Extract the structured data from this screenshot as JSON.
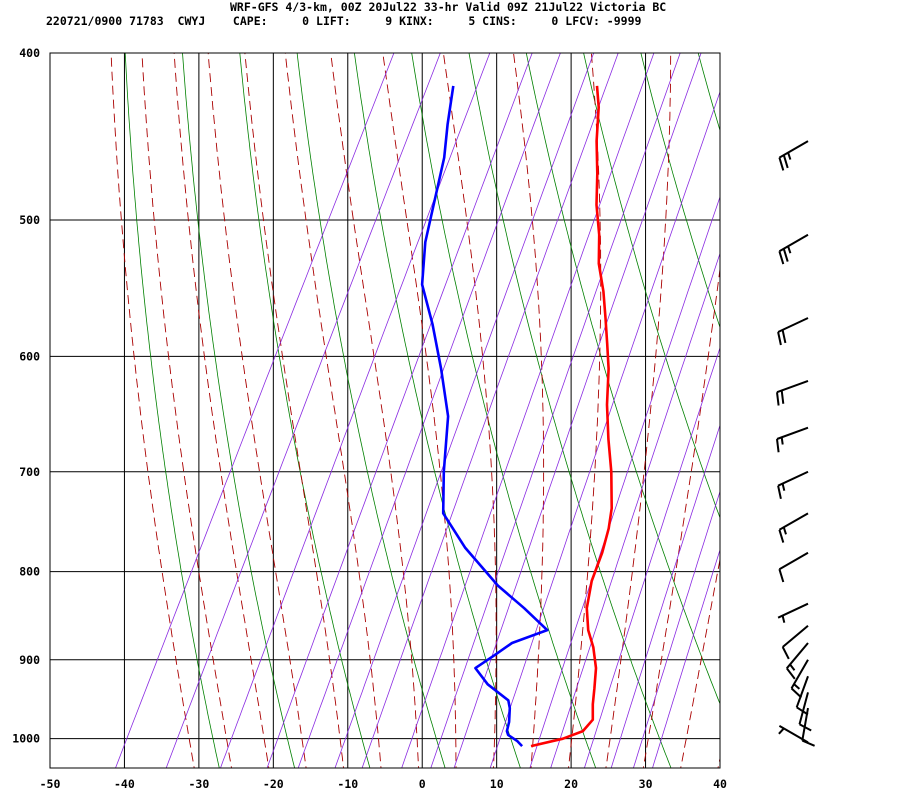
{
  "header": {
    "line1": "WRF-GFS 4/3-km, 00Z 20Jul22 33-hr Valid 09Z 21Jul22 Victoria BC",
    "line2": "220721/0900 71783  CWYJ    CAPE:     0 LIFT:     9 KINX:     5 CINS:     0 LFCV: -9999"
  },
  "chart_data": {
    "type": "line",
    "title": "WRF-GFS 4/3-km, 00Z 20Jul22 33-hr Valid 09Z 21Jul22 Victoria BC",
    "xlabel": "",
    "ylabel": "",
    "x_scale": "skew-T temperature (C)",
    "y_scale": "log pressure (hPa)",
    "xlim": [
      -50,
      40
    ],
    "ylim": [
      1040,
      400
    ],
    "x_ticks": [
      "-50",
      "-40",
      "-30",
      "-20",
      "-10",
      "0",
      "10",
      "20",
      "30",
      "40"
    ],
    "y_ticks": [
      "400",
      "500",
      "600",
      "700",
      "800",
      "900",
      "1000"
    ],
    "grid": true,
    "colors": {
      "temperature": "#ff0000",
      "dewpoint": "#0000ff",
      "isotherm": "#000000",
      "dry_adiabat": "#008000",
      "moist_adiabat": "#aa0000",
      "mixing_ratio": "#8a2be2",
      "wind_barb": "#000000"
    },
    "series": [
      {
        "key": "temperature",
        "points": [
          [
            1010,
            13.2
          ],
          [
            1000,
            17.0
          ],
          [
            990,
            19.2
          ],
          [
            975,
            19.8
          ],
          [
            955,
            18.8
          ],
          [
            935,
            18.0
          ],
          [
            910,
            16.9
          ],
          [
            885,
            15.2
          ],
          [
            865,
            13.4
          ],
          [
            840,
            11.8
          ],
          [
            810,
            10.7
          ],
          [
            780,
            10.3
          ],
          [
            755,
            9.6
          ],
          [
            735,
            8.7
          ],
          [
            700,
            6.3
          ],
          [
            670,
            3.8
          ],
          [
            640,
            1.4
          ],
          [
            610,
            -0.7
          ],
          [
            590,
            -2.5
          ],
          [
            570,
            -4.4
          ],
          [
            550,
            -6.4
          ],
          [
            530,
            -8.8
          ],
          [
            510,
            -10.6
          ],
          [
            490,
            -12.9
          ],
          [
            470,
            -14.8
          ],
          [
            450,
            -17.0
          ],
          [
            430,
            -18.9
          ],
          [
            418,
            -20.5
          ]
        ]
      },
      {
        "key": "dewpoint",
        "points": [
          [
            1010,
            12.0
          ],
          [
            1003,
            11.0
          ],
          [
            995,
            9.4
          ],
          [
            990,
            9.0
          ],
          [
            978,
            8.7
          ],
          [
            960,
            7.9
          ],
          [
            950,
            7.2
          ],
          [
            930,
            3.4
          ],
          [
            910,
            0.7
          ],
          [
            895,
            2.4
          ],
          [
            880,
            4.0
          ],
          [
            865,
            7.9
          ],
          [
            840,
            3.4
          ],
          [
            815,
            -1.6
          ],
          [
            775,
            -8.4
          ],
          [
            740,
            -13.6
          ],
          [
            700,
            -16.2
          ],
          [
            650,
            -19.2
          ],
          [
            610,
            -23.2
          ],
          [
            575,
            -27.2
          ],
          [
            545,
            -31.2
          ],
          [
            515,
            -33.5
          ],
          [
            480,
            -35.3
          ],
          [
            460,
            -36.4
          ],
          [
            440,
            -38.1
          ],
          [
            418,
            -39.8
          ]
        ]
      }
    ],
    "wind_barbs": [
      {
        "pressure": 1005,
        "direction": 300,
        "speed": 5
      },
      {
        "pressure": 960,
        "direction": 190,
        "speed": 10
      },
      {
        "pressure": 940,
        "direction": 195,
        "speed": 10
      },
      {
        "pressure": 920,
        "direction": 200,
        "speed": 10
      },
      {
        "pressure": 900,
        "direction": 210,
        "speed": 15
      },
      {
        "pressure": 880,
        "direction": 220,
        "speed": 15
      },
      {
        "pressure": 860,
        "direction": 230,
        "speed": 10
      },
      {
        "pressure": 835,
        "direction": 245,
        "speed": 5
      },
      {
        "pressure": 780,
        "direction": 240,
        "speed": 10
      },
      {
        "pressure": 740,
        "direction": 240,
        "speed": 15
      },
      {
        "pressure": 700,
        "direction": 245,
        "speed": 15
      },
      {
        "pressure": 660,
        "direction": 250,
        "speed": 15
      },
      {
        "pressure": 620,
        "direction": 250,
        "speed": 20
      },
      {
        "pressure": 570,
        "direction": 245,
        "speed": 20
      },
      {
        "pressure": 510,
        "direction": 240,
        "speed": 25
      },
      {
        "pressure": 450,
        "direction": 240,
        "speed": 25
      }
    ]
  }
}
